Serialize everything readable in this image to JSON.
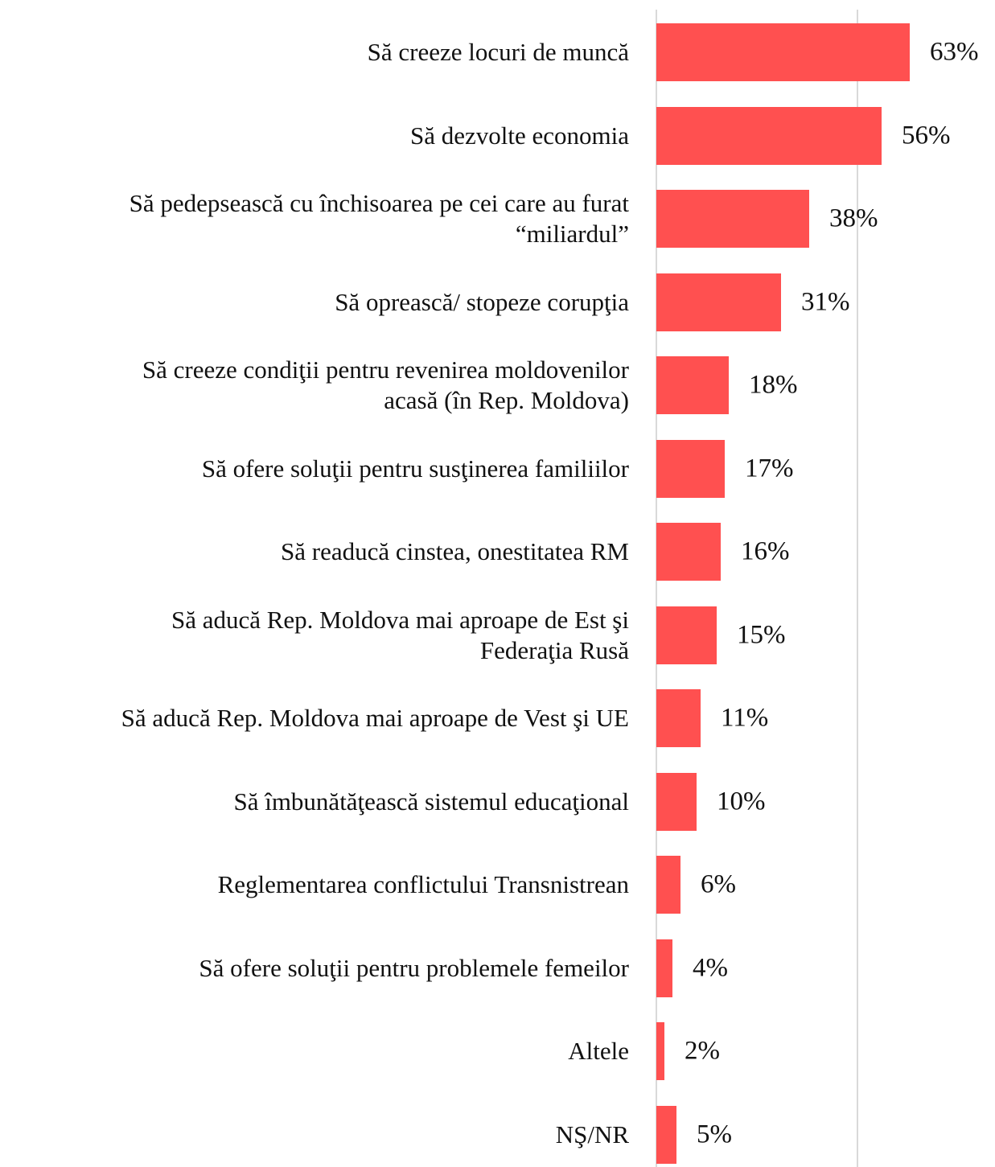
{
  "chart_data": {
    "type": "barh",
    "categories": [
      "Să creeze locuri de muncă",
      "Să dezvolte economia",
      "Să pedepsească cu închisoarea pe cei care au furat\n“miliardul”",
      "Să oprească/ stopeze corupţia",
      "Să creeze condiţii pentru revenirea moldovenilor\nacasă (în Rep. Moldova)",
      "Să ofere soluţii pentru susţinerea familiilor",
      "Să readucă cinstea, onestitatea RM",
      "Să aducă Rep. Moldova mai aproape de Est şi\nFederaţia Rusă",
      "Să aducă Rep. Moldova mai aproape de Vest şi UE",
      "Să îmbunătăţească sistemul educaţional",
      "Reglementarea conflictului Transnistrean",
      "Să ofere soluţii pentru problemele femeilor",
      "Altele",
      "NŞ/NR"
    ],
    "values": [
      63,
      56,
      38,
      31,
      18,
      17,
      16,
      15,
      11,
      10,
      6,
      4,
      2,
      5
    ],
    "value_labels": [
      "63%",
      "56%",
      "38%",
      "31%",
      "18%",
      "17%",
      "16%",
      "15%",
      "11%",
      "10%",
      "6%",
      "4%",
      "2%",
      "5%"
    ],
    "color": "#ff5050",
    "xlim": [
      0,
      80
    ],
    "xticks": [
      0,
      50
    ],
    "grid": true
  }
}
